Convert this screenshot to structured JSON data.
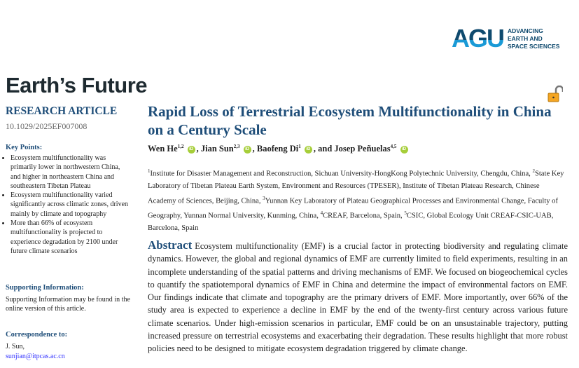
{
  "journal": "Earth’s Future",
  "publisher": {
    "logo": "AGU",
    "tagline": [
      "ADVANCING",
      "EARTH AND",
      "SPACE SCIENCES"
    ]
  },
  "open_access_icon": "open-lock-icon",
  "article_type": "RESEARCH ARTICLE",
  "doi": "10.1029/2025EF007008",
  "key_points": {
    "heading": "Key Points:",
    "items": [
      "Ecosystem multifunctionality was primarily lower in northwestern China, and higher in northeastern China and southeastern Tibetan Plateau",
      "Ecosystem multifunctionality varied significantly across climatic zones, driven mainly by climate and topography",
      "More than 66% of ecosystem multifunctionality is projected to experience degradation by 2100 under future climate scenarios"
    ]
  },
  "supporting": {
    "heading": "Supporting Information:",
    "text": "Supporting Information may be found in the online version of this article."
  },
  "correspondence": {
    "heading": "Correspondence to:",
    "name": "J. Sun,",
    "email": "sunjian@itpcas.ac.cn"
  },
  "title": "Rapid Loss of Terrestrial Ecosystem Multifunctionality in China on a Century Scale",
  "authors": [
    {
      "name": "Wen He",
      "sup": "1,2",
      "sep": ", "
    },
    {
      "name": "Jian Sun",
      "sup": "2,3",
      "sep": ", "
    },
    {
      "name": "Baofeng Di",
      "sup": "1",
      "sep": ", and "
    },
    {
      "name": "Josep Peñuelas",
      "sup": "4,5",
      "sep": ""
    }
  ],
  "orcid_label": "iD",
  "affiliations": [
    {
      "sup": "1",
      "text": "Institute for Disaster Management and Reconstruction, Sichuan University-HongKong Polytechnic University, Chengdu, China, "
    },
    {
      "sup": "2",
      "text": "State Key Laboratory of Tibetan Plateau Earth System, Environment and Resources (TPESER), Institute of Tibetan Plateau Research, Chinese Academy of Sciences, Beijing, China, "
    },
    {
      "sup": "3",
      "text": "Yunnan Key Laboratory of Plateau Geographical Processes and Environmental Change, Faculty of Geography, Yunnan Normal University, Kunming, China, "
    },
    {
      "sup": "4",
      "text": "CREAF, Barcelona, Spain, "
    },
    {
      "sup": "5",
      "text": "CSIC, Global Ecology Unit CREAF-CSIC-UAB, Barcelona, Spain"
    }
  ],
  "abstract": {
    "heading": "Abstract",
    "text": "Ecosystem multifunctionality (EMF) is a crucial factor in protecting biodiversity and regulating climate dynamics. However, the global and regional dynamics of EMF are currently limited to field experiments, resulting in an incomplete understanding of the spatial patterns and driving mechanisms of EMF. We focused on biogeochemical cycles to quantify the spatiotemporal dynamics of EMF in China and determine the impact of environmental factors on EMF. Our findings indicate that climate and topography are the primary drivers of EMF. More importantly, over 66% of the study area is expected to experience a decline in EMF by the end of the twenty-first century across various future climate scenarios. Under high-emission scenarios in particular, EMF could be on an unsustainable trajectory, putting increased pressure on terrestrial ecosystems and exacerbating their degradation. These results highlight that more robust policies need to be designed to mitigate ecosystem degradation triggered by climate change."
  }
}
